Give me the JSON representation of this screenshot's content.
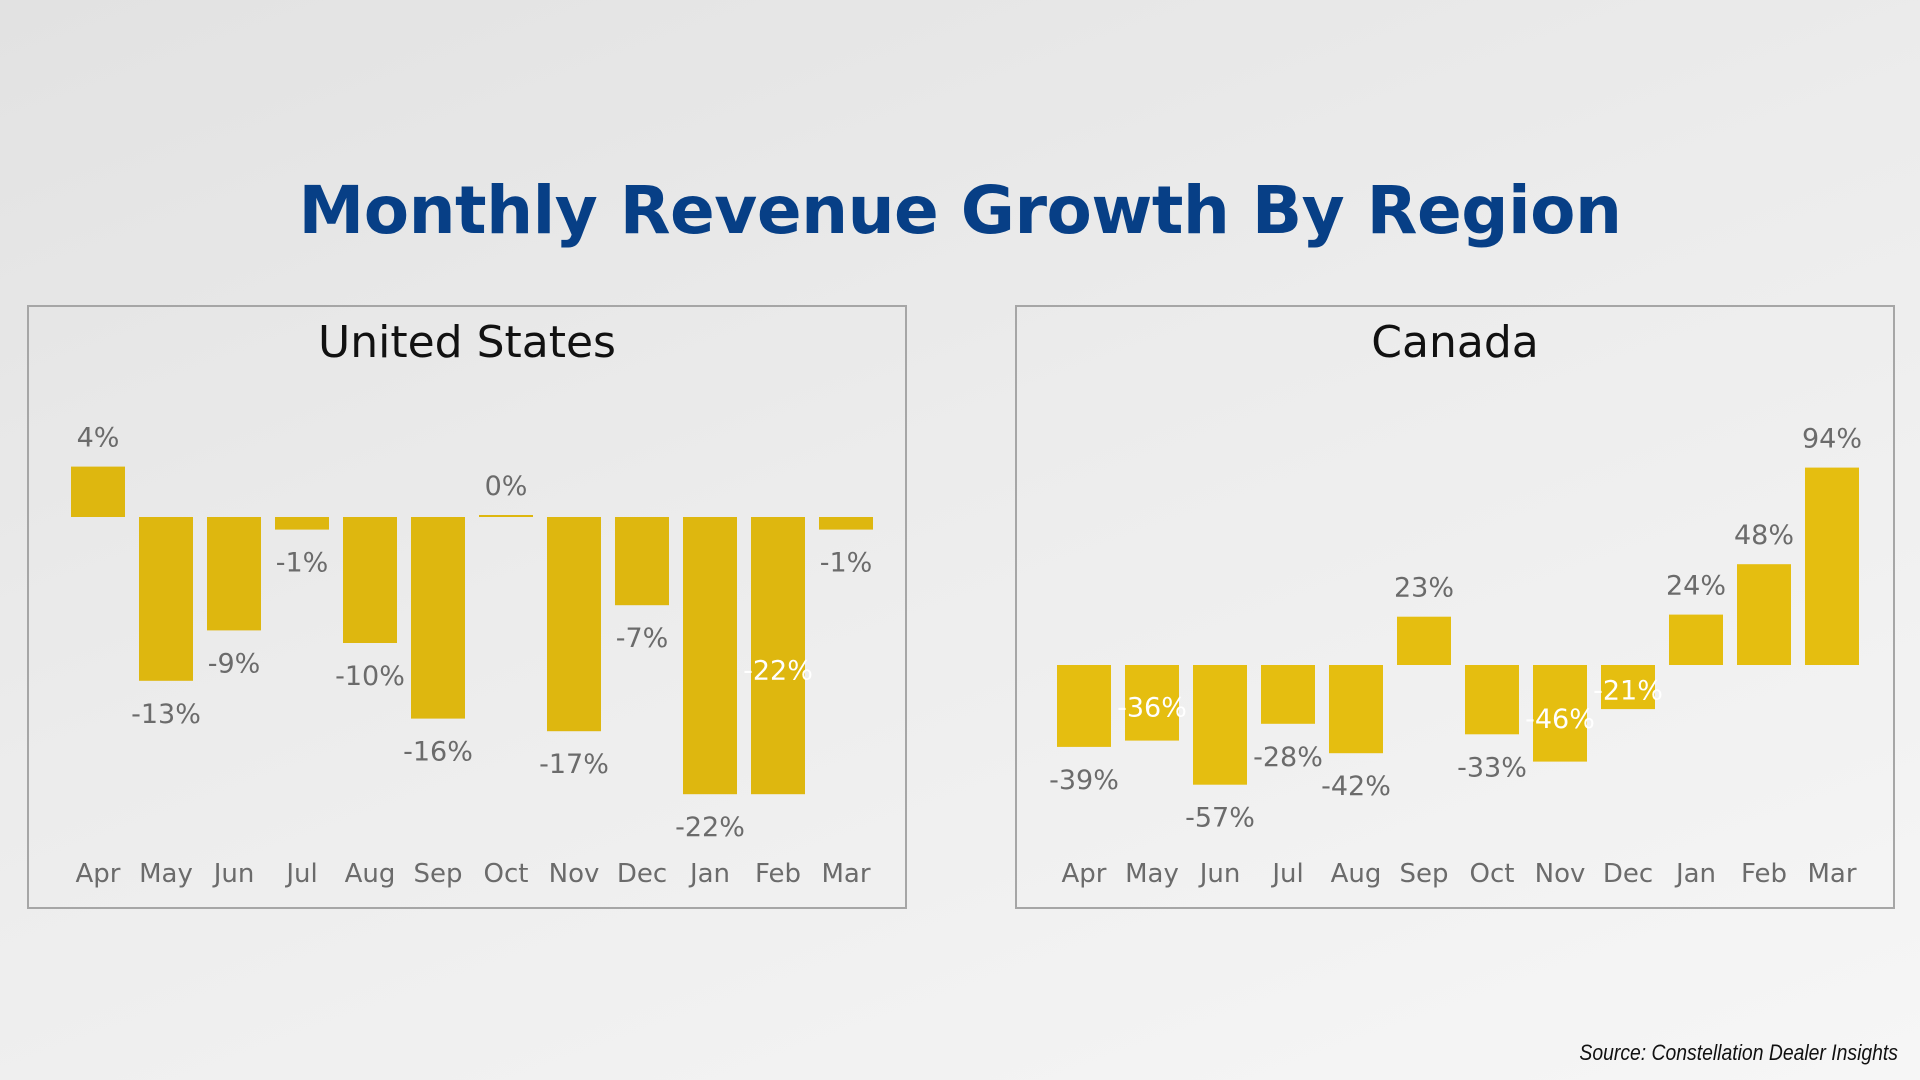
{
  "title": "Monthly Revenue Growth By Region",
  "source": "Source: Constellation Dealer Insights",
  "colors": {
    "bar": "#deb70f",
    "bar_canada": "#e5be10",
    "title": "#073f86",
    "label": "#6b6b6b",
    "label_inside": "#ffffff"
  },
  "chart_data": [
    {
      "type": "bar",
      "title": "United States",
      "categories": [
        "Apr",
        "May",
        "Jun",
        "Jul",
        "Aug",
        "Sep",
        "Oct",
        "Nov",
        "Dec",
        "Jan",
        "Feb",
        "Mar"
      ],
      "values": [
        4,
        -13,
        -9,
        -1,
        -10,
        -16,
        0,
        -17,
        -7,
        -22,
        -22,
        -1
      ],
      "data_labels": [
        "4%",
        "-13%",
        "-9%",
        "-1%",
        "-10%",
        "-16%",
        "0%",
        "-17%",
        "-7%",
        "-22%",
        "-22%",
        "-1%"
      ],
      "label_inside": [
        false,
        false,
        false,
        false,
        false,
        false,
        false,
        false,
        false,
        false,
        true,
        false
      ],
      "xlabel": "",
      "ylabel": "",
      "ylim": [
        -25,
        5
      ],
      "grid": false,
      "y_axis_visible": false
    },
    {
      "type": "bar",
      "title": "Canada",
      "categories": [
        "Apr",
        "May",
        "Jun",
        "Jul",
        "Aug",
        "Sep",
        "Oct",
        "Nov",
        "Dec",
        "Jan",
        "Feb",
        "Mar"
      ],
      "values": [
        -39,
        -36,
        -57,
        -28,
        -42,
        23,
        -33,
        -46,
        -21,
        24,
        48,
        94
      ],
      "data_labels": [
        "-39%",
        "-36%",
        "-57%",
        "-28%",
        "-42%",
        "23%",
        "-33%",
        "-46%",
        "-21%",
        "24%",
        "48%",
        "94%"
      ],
      "label_inside": [
        false,
        true,
        false,
        false,
        false,
        false,
        false,
        true,
        true,
        false,
        false,
        false
      ],
      "xlabel": "",
      "ylabel": "",
      "ylim": [
        -70,
        100
      ],
      "grid": false,
      "y_axis_visible": false
    }
  ]
}
